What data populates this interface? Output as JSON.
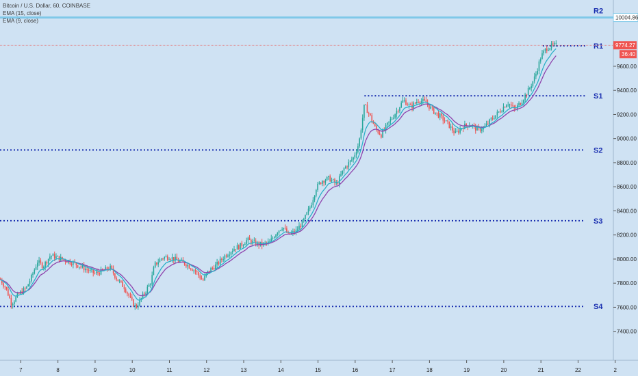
{
  "legend": {
    "symbol": "Bitcoin / U.S. Dollar, 60, COINBASE",
    "ema1": "EMA (15, close)",
    "ema2": "EMA (9, close)"
  },
  "colors": {
    "background": "#cfe2f3",
    "level_dots": "#1a2fb0",
    "level_labels": "#1a2fb0",
    "candle_up": "#26a69a",
    "candle_down": "#ef5350",
    "ema15": "#8e44ad",
    "ema9": "#2bb0c8",
    "r2_line": "#7fc8e8",
    "price_line": "#e57373"
  },
  "chart_data": {
    "type": "candlestick",
    "title": "Bitcoin / U.S. Dollar, 60, COINBASE",
    "x_ticks": [
      "7",
      "8",
      "9",
      "10",
      "11",
      "12",
      "13",
      "14",
      "15",
      "16",
      "17",
      "18",
      "19",
      "20",
      "21",
      "22",
      "2"
    ],
    "y_ticks": [
      "7400.00",
      "7600.00",
      "7800.00",
      "8000.00",
      "8200.00",
      "8400.00",
      "8600.00",
      "8800.00",
      "9000.00",
      "9200.00",
      "9400.00",
      "9600.00"
    ],
    "ylim": [
      7160,
      10150
    ],
    "xlim": [
      6.44,
      22.95
    ],
    "levels": [
      {
        "name": "R2",
        "value": 10004.86,
        "label": "10004.86",
        "style": "solid"
      },
      {
        "name": "R1",
        "value": 9770,
        "style": "dotted",
        "x_start": 21.05
      },
      {
        "name": "S1",
        "value": 9355,
        "style": "dotted",
        "x_start": 16.25
      },
      {
        "name": "S2",
        "value": 8905,
        "style": "dotted",
        "x_start": 6.44
      },
      {
        "name": "S3",
        "value": 8318,
        "style": "dotted",
        "x_start": 6.44
      },
      {
        "name": "S4",
        "value": 7607,
        "style": "dotted",
        "x_start": 6.44
      }
    ],
    "last_price": {
      "value": 9774.27,
      "label": "9774.27",
      "countdown": "36:40"
    },
    "price_path": [
      [
        6.45,
        7830
      ],
      [
        6.6,
        7760
      ],
      [
        6.75,
        7630
      ],
      [
        6.95,
        7710
      ],
      [
        7.15,
        7760
      ],
      [
        7.3,
        7860
      ],
      [
        7.45,
        7980
      ],
      [
        7.6,
        7940
      ],
      [
        7.8,
        8030
      ],
      [
        8.0,
        8010
      ],
      [
        8.2,
        7990
      ],
      [
        8.4,
        7970
      ],
      [
        8.6,
        7940
      ],
      [
        8.8,
        7910
      ],
      [
        9.0,
        7880
      ],
      [
        9.2,
        7900
      ],
      [
        9.4,
        7930
      ],
      [
        9.6,
        7830
      ],
      [
        9.8,
        7760
      ],
      [
        10.0,
        7640
      ],
      [
        10.1,
        7600
      ],
      [
        10.3,
        7700
      ],
      [
        10.5,
        7810
      ],
      [
        10.6,
        7950
      ],
      [
        10.8,
        8010
      ],
      [
        11.0,
        8020
      ],
      [
        11.2,
        7990
      ],
      [
        11.45,
        7960
      ],
      [
        11.7,
        7900
      ],
      [
        11.9,
        7820
      ],
      [
        12.05,
        7900
      ],
      [
        12.3,
        7960
      ],
      [
        12.5,
        8030
      ],
      [
        12.75,
        8090
      ],
      [
        12.9,
        8110
      ],
      [
        13.1,
        8160
      ],
      [
        13.3,
        8130
      ],
      [
        13.5,
        8120
      ],
      [
        13.7,
        8140
      ],
      [
        13.9,
        8230
      ],
      [
        14.05,
        8270
      ],
      [
        14.2,
        8200
      ],
      [
        14.4,
        8230
      ],
      [
        14.6,
        8310
      ],
      [
        14.8,
        8440
      ],
      [
        14.95,
        8590
      ],
      [
        15.1,
        8650
      ],
      [
        15.3,
        8670
      ],
      [
        15.5,
        8620
      ],
      [
        15.7,
        8750
      ],
      [
        15.95,
        8840
      ],
      [
        16.1,
        8960
      ],
      [
        16.25,
        9280
      ],
      [
        16.4,
        9190
      ],
      [
        16.55,
        9080
      ],
      [
        16.7,
        9030
      ],
      [
        16.9,
        9130
      ],
      [
        17.1,
        9220
      ],
      [
        17.3,
        9320
      ],
      [
        17.5,
        9260
      ],
      [
        17.7,
        9320
      ],
      [
        17.9,
        9300
      ],
      [
        18.1,
        9230
      ],
      [
        18.3,
        9180
      ],
      [
        18.5,
        9120
      ],
      [
        18.7,
        9040
      ],
      [
        18.9,
        9100
      ],
      [
        19.1,
        9120
      ],
      [
        19.3,
        9070
      ],
      [
        19.5,
        9100
      ],
      [
        19.7,
        9170
      ],
      [
        19.9,
        9230
      ],
      [
        20.1,
        9300
      ],
      [
        20.3,
        9240
      ],
      [
        20.5,
        9320
      ],
      [
        20.7,
        9420
      ],
      [
        20.85,
        9520
      ],
      [
        21.0,
        9680
      ],
      [
        21.15,
        9750
      ],
      [
        21.3,
        9770
      ],
      [
        21.42,
        9774
      ]
    ],
    "series": [
      {
        "name": "EMA (15, close)",
        "smoothing": 15
      },
      {
        "name": "EMA (9, close)",
        "smoothing": 9
      }
    ]
  },
  "level_labels": {
    "r2": "R2",
    "r1": "R1",
    "s1": "S1",
    "s2": "S2",
    "s3": "S3",
    "s4": "S4"
  }
}
